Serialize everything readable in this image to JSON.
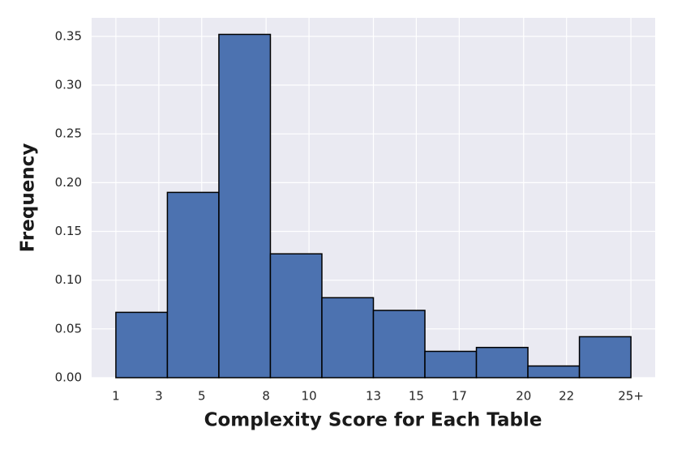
{
  "chart_data": {
    "type": "histogram",
    "x_label": "Complexity Score for Each Table",
    "y_label": "Frequency",
    "bins": [
      1,
      3.4,
      5.8,
      8.2,
      10.6,
      13,
      15.4,
      17.8,
      20.2,
      22.6,
      25
    ],
    "values": [
      0.067,
      0.19,
      0.352,
      0.127,
      0.082,
      0.069,
      0.027,
      0.031,
      0.012,
      0.042
    ],
    "color": "#4c72b0",
    "edgecolor": "#000000",
    "xlim": [
      -0.13,
      26.13
    ],
    "ylim": [
      0,
      0.369
    ],
    "xticks": [
      1,
      3,
      5,
      8,
      10,
      13,
      15,
      17,
      20,
      22,
      {
        "value": 25,
        "label": "25+"
      }
    ],
    "yticks": [
      {
        "value": 0,
        "label": "0.00"
      },
      {
        "value": 0.05,
        "label": "0.05"
      },
      {
        "value": 0.1,
        "label": "0.10"
      },
      {
        "value": 0.15,
        "label": "0.15"
      },
      {
        "value": 0.2,
        "label": "0.20"
      },
      {
        "value": 0.25,
        "label": "0.25"
      },
      {
        "value": 0.3,
        "label": "0.30"
      },
      {
        "value": 0.35,
        "label": "0.35"
      }
    ],
    "grid": true
  }
}
